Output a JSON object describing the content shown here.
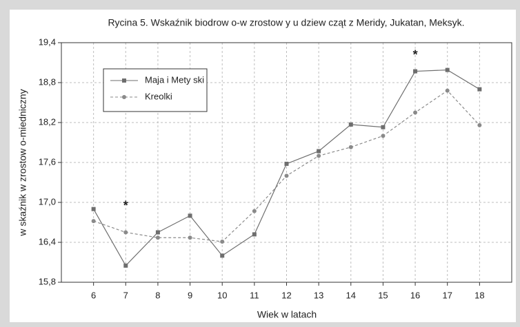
{
  "chart_data": {
    "type": "line",
    "title": "Rycina 5. Wskaźnik biodrow o-w zrostow y u dziew cząt z Meridy, Jukatan, Meksyk.",
    "x_label": "Wiek w  latach",
    "y_label": "w skaźnik w zrostow o-miedniczny",
    "x": [
      6,
      7,
      8,
      9,
      10,
      11,
      12,
      13,
      14,
      15,
      16,
      17,
      18
    ],
    "series": [
      {
        "name": "Maja i Mety ski",
        "color": "#6e6e6e",
        "dashed": false,
        "marker": "square",
        "values": [
          16.9,
          16.05,
          16.55,
          16.8,
          16.2,
          16.52,
          17.58,
          17.77,
          18.17,
          18.13,
          18.97,
          18.99,
          18.7
        ]
      },
      {
        "name": "Kreolki",
        "color": "#8a8a8a",
        "dashed": true,
        "marker": "circle",
        "values": [
          16.72,
          16.55,
          16.47,
          16.47,
          16.41,
          16.87,
          17.4,
          17.7,
          17.83,
          18.0,
          18.35,
          18.68,
          18.16
        ]
      }
    ],
    "xlim": [
      5,
      19
    ],
    "xticks": [
      6,
      7,
      8,
      9,
      10,
      11,
      12,
      13,
      14,
      15,
      16,
      17,
      18
    ],
    "ylim": [
      15.8,
      19.4
    ],
    "yticks": [
      {
        "value": 15.8,
        "label": "15,8"
      },
      {
        "value": 16.4,
        "label": "16,4"
      },
      {
        "value": 17.0,
        "label": "17,0"
      },
      {
        "value": 17.6,
        "label": "17,6"
      },
      {
        "value": 18.2,
        "label": "18,2"
      },
      {
        "value": 18.8,
        "label": "18,8"
      },
      {
        "value": 19.4,
        "label": "19,4"
      }
    ],
    "grid": true,
    "legend": "upper left",
    "annotations": [
      {
        "text": "*",
        "x": 7,
        "y": 16.98
      },
      {
        "text": "*",
        "x": 16,
        "y": 19.25
      }
    ]
  }
}
